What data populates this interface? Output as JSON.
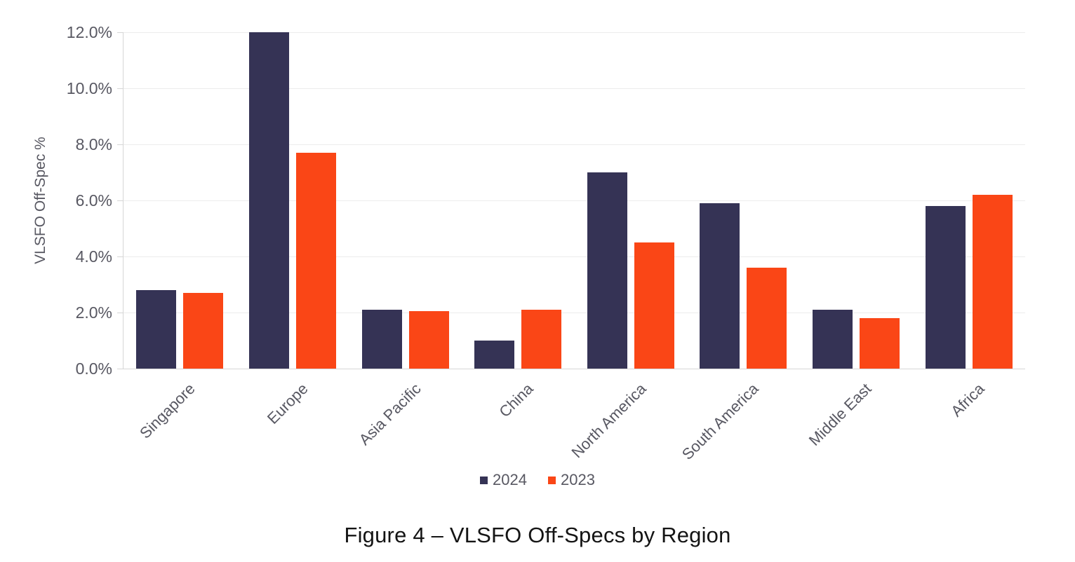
{
  "figure": {
    "caption": "Figure 4 – VLSFO Off-Specs by Region"
  },
  "chart_data": {
    "type": "bar",
    "title": "",
    "xlabel": "",
    "ylabel": "VLSFO Off-Spec %",
    "ylim": [
      0,
      12
    ],
    "y_tick_step": 2,
    "y_tick_labels": [
      "0.0%",
      "2.0%",
      "4.0%",
      "6.0%",
      "8.0%",
      "10.0%",
      "12.0%"
    ],
    "grid": "horizontal",
    "legend_position": "bottom",
    "categories": [
      "Singapore",
      "Europe",
      "Asia Pacific",
      "China",
      "North America",
      "South America",
      "Middle East",
      "Africa"
    ],
    "series": [
      {
        "name": "2024",
        "color": "#353355",
        "values": [
          2.8,
          12.0,
          2.1,
          1.0,
          7.0,
          5.9,
          2.1,
          5.8
        ]
      },
      {
        "name": "2023",
        "color": "#fa4616",
        "values": [
          2.7,
          7.7,
          2.05,
          2.1,
          4.5,
          3.6,
          1.8,
          6.2
        ]
      }
    ]
  }
}
